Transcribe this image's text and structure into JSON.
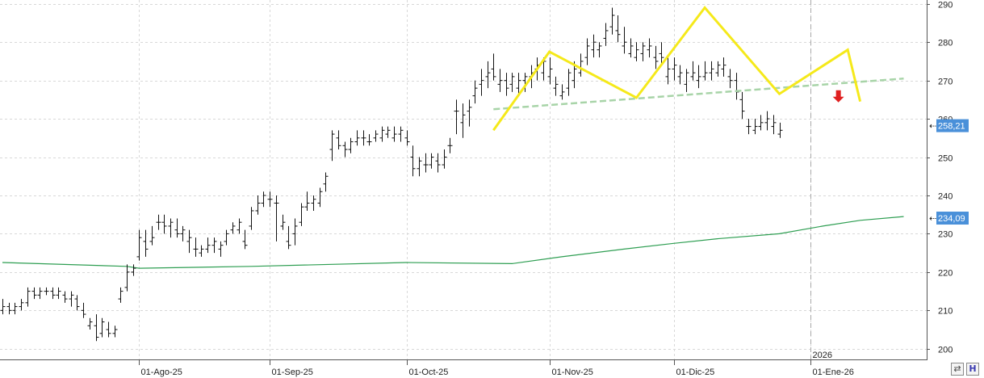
{
  "chart_data": {
    "type": "ohlc",
    "y_ticks": [
      200,
      210,
      220,
      230,
      240,
      250,
      260,
      270,
      280,
      290
    ],
    "ylim": [
      197,
      291
    ],
    "x_labels": [
      {
        "label": "01-Ago-25",
        "index": 22
      },
      {
        "label": "01-Sep-25",
        "index": 43
      },
      {
        "label": "01-Oct-25",
        "index": 65
      },
      {
        "label": "01-Nov-25",
        "index": 88
      },
      {
        "label": "01-Dic-25",
        "index": 108
      },
      {
        "label": "01-Ene-26",
        "index": 130
      }
    ],
    "year_marker": {
      "label": "2026",
      "index": 130
    },
    "price_badge": {
      "value": 258.21,
      "label": "258,21",
      "color": "#4a90d9"
    },
    "ma_badge": {
      "value": 234.09,
      "label": "234,09",
      "color": "#4a90d9"
    },
    "bars": [
      [
        210,
        213,
        209,
        211
      ],
      [
        211,
        212,
        209,
        210
      ],
      [
        210,
        212,
        209,
        211
      ],
      [
        211,
        213,
        210,
        212
      ],
      [
        212,
        216,
        211,
        215
      ],
      [
        215,
        216,
        213,
        214
      ],
      [
        214,
        216,
        213,
        215
      ],
      [
        215,
        216,
        214,
        215
      ],
      [
        215,
        216,
        213,
        214
      ],
      [
        214,
        216,
        213,
        215
      ],
      [
        214,
        215,
        212,
        213
      ],
      [
        213,
        215,
        211,
        214
      ],
      [
        213,
        214,
        210,
        211
      ],
      [
        210,
        212,
        208,
        209
      ],
      [
        206,
        208,
        205,
        207
      ],
      [
        206,
        209,
        202,
        203
      ],
      [
        204,
        208,
        203,
        207
      ],
      [
        205,
        207,
        203,
        204
      ],
      [
        204,
        206,
        203,
        205
      ],
      [
        213,
        216,
        212,
        215
      ],
      [
        216,
        222,
        215,
        220
      ],
      [
        220,
        222,
        219,
        221
      ],
      [
        224,
        231,
        223,
        229
      ],
      [
        228,
        231,
        224,
        226
      ],
      [
        228,
        232,
        227,
        229
      ],
      [
        233,
        235,
        231,
        233
      ],
      [
        233,
        235,
        230,
        232
      ],
      [
        232,
        234,
        229,
        233
      ],
      [
        231,
        234,
        229,
        230
      ],
      [
        230,
        232,
        228,
        231
      ],
      [
        228,
        231,
        225,
        229
      ],
      [
        226,
        229,
        224,
        226
      ],
      [
        225,
        227,
        224,
        226
      ],
      [
        226,
        229,
        225,
        227
      ],
      [
        227,
        229,
        225,
        228
      ],
      [
        226,
        228,
        224,
        227
      ],
      [
        228,
        231,
        227,
        230
      ],
      [
        231,
        233,
        230,
        232
      ],
      [
        231,
        234,
        230,
        233
      ],
      [
        228,
        231,
        226,
        227
      ],
      [
        232,
        237,
        231,
        236
      ],
      [
        236,
        240,
        235,
        238
      ],
      [
        238,
        241,
        237,
        240
      ],
      [
        239,
        241,
        237,
        239
      ],
      [
        238,
        240,
        228,
        238
      ],
      [
        232,
        235,
        231,
        233
      ],
      [
        228,
        232,
        226,
        227
      ],
      [
        230,
        234,
        227,
        232
      ],
      [
        233,
        238,
        232,
        237
      ],
      [
        237,
        241,
        236,
        238
      ],
      [
        238,
        240,
        236,
        239
      ],
      [
        238,
        242,
        237,
        241
      ],
      [
        243,
        246,
        241,
        245
      ],
      [
        252,
        257,
        249,
        256
      ],
      [
        255,
        257,
        252,
        253
      ],
      [
        253,
        254,
        250,
        252
      ],
      [
        252,
        255,
        251,
        254
      ],
      [
        254,
        257,
        253,
        255
      ],
      [
        255,
        257,
        253,
        255
      ],
      [
        254,
        256,
        253,
        254
      ],
      [
        255,
        257,
        254,
        256
      ],
      [
        255,
        258,
        254,
        257
      ],
      [
        256,
        258,
        255,
        257
      ],
      [
        255,
        258,
        254,
        256
      ],
      [
        256,
        258,
        254,
        257
      ],
      [
        255,
        257,
        253,
        254
      ],
      [
        250,
        253,
        245,
        247
      ],
      [
        247,
        250,
        245,
        249
      ],
      [
        248,
        251,
        246,
        248
      ],
      [
        248,
        251,
        247,
        250
      ],
      [
        249,
        251,
        246,
        248
      ],
      [
        248,
        252,
        247,
        250
      ],
      [
        253,
        255,
        251,
        253
      ],
      [
        262,
        265,
        256,
        262
      ],
      [
        259,
        264,
        255,
        261
      ],
      [
        262,
        265,
        258,
        263
      ],
      [
        266,
        270,
        264,
        268
      ],
      [
        269,
        273,
        266,
        270
      ],
      [
        271,
        275,
        268,
        272
      ],
      [
        273,
        277,
        270,
        271
      ],
      [
        269,
        273,
        267,
        270
      ],
      [
        270,
        272,
        266,
        268
      ],
      [
        269,
        272,
        267,
        271
      ],
      [
        268,
        272,
        266,
        270
      ],
      [
        270,
        272,
        267,
        271
      ],
      [
        271,
        274,
        268,
        272
      ],
      [
        273,
        276,
        270,
        274
      ],
      [
        272,
        276,
        270,
        275
      ],
      [
        271,
        276,
        269,
        273
      ],
      [
        268,
        271,
        266,
        269
      ],
      [
        266,
        269,
        265,
        267
      ],
      [
        268,
        273,
        266,
        272
      ],
      [
        270,
        275,
        268,
        273
      ],
      [
        272,
        277,
        271,
        275
      ],
      [
        276,
        281,
        274,
        279
      ],
      [
        278,
        282,
        276,
        280
      ],
      [
        278,
        280,
        276,
        279
      ],
      [
        281,
        285,
        279,
        283
      ],
      [
        284,
        289,
        282,
        287
      ],
      [
        283,
        287,
        280,
        282
      ],
      [
        279,
        284,
        277,
        280
      ],
      [
        277,
        281,
        276,
        279
      ],
      [
        276,
        280,
        275,
        278
      ],
      [
        277,
        280,
        275,
        279
      ],
      [
        278,
        281,
        276,
        279
      ],
      [
        276,
        279,
        273,
        275
      ],
      [
        277,
        280,
        274,
        276
      ],
      [
        271,
        276,
        269,
        273
      ],
      [
        273,
        276,
        270,
        274
      ],
      [
        271,
        274,
        269,
        272
      ],
      [
        269,
        273,
        267,
        272
      ],
      [
        271,
        275,
        270,
        272
      ],
      [
        270,
        274,
        268,
        271
      ],
      [
        271,
        275,
        270,
        272
      ],
      [
        272,
        275,
        270,
        273
      ],
      [
        272,
        275,
        271,
        274
      ],
      [
        273,
        276,
        271,
        274
      ],
      [
        271,
        273,
        268,
        270
      ],
      [
        270,
        272,
        265,
        267
      ],
      [
        265,
        267,
        260,
        262
      ],
      [
        258,
        260,
        256,
        258
      ],
      [
        257,
        260,
        256,
        258
      ],
      [
        258,
        261,
        257,
        259
      ],
      [
        259,
        262,
        257,
        260
      ],
      [
        258,
        261,
        256,
        259
      ],
      [
        256,
        259,
        255,
        257
      ]
    ],
    "moving_average": [
      [
        0,
        222.5
      ],
      [
        20,
        221.5
      ],
      [
        22,
        221.0
      ],
      [
        40,
        221.5
      ],
      [
        65,
        222.5
      ],
      [
        82,
        222.2
      ],
      [
        90,
        224.0
      ],
      [
        100,
        226.0
      ],
      [
        108,
        227.5
      ],
      [
        115,
        228.7
      ],
      [
        125,
        230.0
      ],
      [
        132,
        232.0
      ],
      [
        138,
        233.5
      ],
      [
        145,
        234.5
      ]
    ],
    "pattern_polyline": [
      [
        79,
        257
      ],
      [
        88,
        277.5
      ],
      [
        102,
        265.5
      ],
      [
        113,
        289
      ],
      [
        125,
        266.5
      ],
      [
        136,
        278
      ],
      [
        138,
        264.5
      ]
    ],
    "neckline": [
      [
        79,
        262.5
      ],
      [
        145,
        270.5
      ]
    ],
    "sell_arrow": {
      "index": 134.5,
      "value": 264.5,
      "color": "#e02020"
    }
  },
  "controls": {
    "compare_icon": "compare-icon",
    "compare_glyph": "⇄",
    "h_label": "H"
  }
}
